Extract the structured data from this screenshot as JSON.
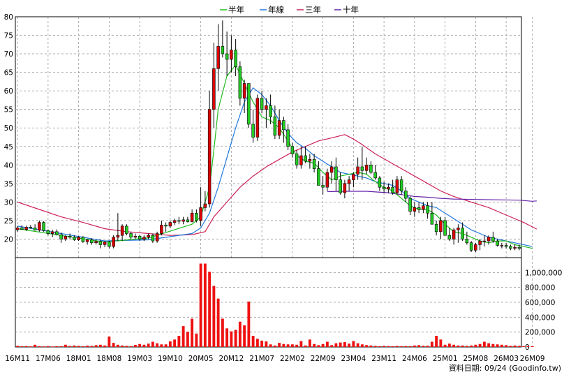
{
  "chart_data": {
    "type": "candlestick",
    "legend": [
      {
        "label": "半年",
        "color": "#22bb22"
      },
      {
        "label": "年線",
        "color": "#2277dd"
      },
      {
        "label": "三年",
        "color": "#cc2255"
      },
      {
        "label": "十年",
        "color": "#6622aa"
      }
    ],
    "price_axis": {
      "ylim": [
        15,
        80
      ],
      "ticks": [
        "80",
        "75",
        "70",
        "65",
        "60",
        "55",
        "50",
        "45",
        "40",
        "35",
        "30",
        "25",
        "20"
      ]
    },
    "volume_axis": {
      "ylim": [
        0,
        1200000
      ],
      "ticks": [
        "1,000,000",
        "800,000",
        "600,000",
        "400,000",
        "200,000",
        "0"
      ]
    },
    "x_ticks": [
      {
        "label": "16M11",
        "i": 0
      },
      {
        "label": "17M06",
        "i": 7
      },
      {
        "label": "18M01",
        "i": 14
      },
      {
        "label": "18M08",
        "i": 21
      },
      {
        "label": "19M03",
        "i": 28
      },
      {
        "label": "19M10",
        "i": 35
      },
      {
        "label": "20M05",
        "i": 42
      },
      {
        "label": "20M12",
        "i": 49
      },
      {
        "label": "21M07",
        "i": 56
      },
      {
        "label": "22M02",
        "i": 63
      },
      {
        "label": "22M09",
        "i": 70
      },
      {
        "label": "23M04",
        "i": 77
      },
      {
        "label": "23M11",
        "i": 84
      },
      {
        "label": "24M06",
        "i": 91
      },
      {
        "label": "25M01",
        "i": 98
      },
      {
        "label": "25M08",
        "i": 105
      },
      {
        "label": "26M03",
        "i": 112
      },
      {
        "label": "26M09",
        "i": 118
      }
    ],
    "ohlc": [
      [
        22.5,
        23.5,
        22,
        23
      ],
      [
        23,
        23.8,
        22.5,
        22.6
      ],
      [
        22.6,
        23.6,
        22.2,
        23.2
      ],
      [
        23.2,
        23.8,
        22.8,
        23
      ],
      [
        23,
        24,
        22.8,
        22.4
      ],
      [
        22.4,
        25,
        22,
        24.5
      ],
      [
        24.5,
        24.8,
        22,
        22.3
      ],
      [
        22.3,
        22.6,
        21,
        21.5
      ],
      [
        21.5,
        22.5,
        20.5,
        22
      ],
      [
        22,
        22.6,
        21,
        21.2
      ],
      [
        21.2,
        21.8,
        19,
        20
      ],
      [
        20,
        21,
        19.5,
        20.8
      ],
      [
        20.8,
        21.5,
        20,
        20.5
      ],
      [
        20.5,
        21,
        19.5,
        19.8
      ],
      [
        19.8,
        20.8,
        19.5,
        20.5
      ],
      [
        20.5,
        20.8,
        19,
        19.3
      ],
      [
        19.3,
        20,
        18.5,
        19.8
      ],
      [
        19.8,
        20.2,
        18.5,
        19
      ],
      [
        19,
        19.8,
        18.5,
        19.4
      ],
      [
        19.4,
        19.8,
        17.5,
        18.5
      ],
      [
        18.5,
        19.5,
        17.8,
        19.2
      ],
      [
        19.2,
        19.5,
        17.5,
        18
      ],
      [
        18,
        21,
        17.5,
        20.5
      ],
      [
        20.5,
        27,
        19.5,
        21
      ],
      [
        21,
        24,
        19.5,
        23.5
      ],
      [
        23.5,
        24,
        21,
        21.5
      ],
      [
        21.5,
        22,
        20,
        20.5
      ],
      [
        20.5,
        21.5,
        20,
        20.8
      ],
      [
        20.8,
        21.2,
        19.5,
        20
      ],
      [
        20,
        21,
        19.5,
        20.5
      ],
      [
        20.5,
        21.5,
        20,
        21
      ],
      [
        21,
        21.5,
        19,
        19.5
      ],
      [
        19.5,
        22,
        19,
        21.5
      ],
      [
        21.5,
        25,
        21,
        23.8
      ],
      [
        23.8,
        24.5,
        22,
        23.5
      ],
      [
        23.5,
        25,
        23,
        24.5
      ],
      [
        24.5,
        25.5,
        23.8,
        25
      ],
      [
        25,
        26,
        24,
        24.8
      ],
      [
        24.8,
        26,
        24,
        25.2
      ],
      [
        25.2,
        26,
        24.5,
        24.7
      ],
      [
        24.7,
        28,
        24.5,
        27
      ],
      [
        27,
        28,
        24.5,
        25
      ],
      [
        25,
        34,
        23.5,
        28.5
      ],
      [
        28.5,
        33,
        27.5,
        29.5
      ],
      [
        29.5,
        60,
        28.5,
        55
      ],
      [
        55,
        73,
        50,
        66
      ],
      [
        66,
        78,
        60,
        72
      ],
      [
        72,
        79,
        69,
        70
      ],
      [
        70,
        76,
        64,
        68.5
      ],
      [
        68.5,
        75,
        65,
        71
      ],
      [
        71,
        74,
        64,
        66.5
      ],
      [
        66.5,
        68,
        56,
        58
      ],
      [
        58,
        63,
        54,
        62
      ],
      [
        62,
        62,
        50,
        51
      ],
      [
        51,
        55,
        46,
        47.5
      ],
      [
        47.5,
        59,
        46.5,
        58
      ],
      [
        58,
        60,
        54,
        55
      ],
      [
        55,
        58,
        50,
        56
      ],
      [
        56,
        59,
        51,
        53
      ],
      [
        53,
        56,
        47,
        48
      ],
      [
        48,
        55,
        47,
        52
      ],
      [
        52,
        53,
        46,
        49.5
      ],
      [
        49.5,
        51,
        44,
        45
      ],
      [
        45,
        46,
        42,
        43
      ],
      [
        43,
        44,
        39,
        40
      ],
      [
        40,
        45,
        39,
        42.5
      ],
      [
        42.5,
        45,
        40.5,
        41
      ],
      [
        41,
        43,
        39,
        41.5
      ],
      [
        41.5,
        43,
        38,
        39
      ],
      [
        39,
        41,
        35,
        34.5
      ],
      [
        34.5,
        37,
        32,
        34
      ],
      [
        34,
        39,
        33,
        38
      ],
      [
        38,
        41,
        35,
        39.5
      ],
      [
        39.5,
        42,
        33,
        36
      ],
      [
        36,
        38,
        32,
        32.5
      ],
      [
        32.5,
        36,
        31,
        35
      ],
      [
        35,
        37,
        33,
        36
      ],
      [
        36,
        38,
        34,
        37.5
      ],
      [
        37.5,
        42,
        36,
        39.5
      ],
      [
        39.5,
        45,
        36,
        38.5
      ],
      [
        38.5,
        42,
        37.5,
        40
      ],
      [
        40,
        41,
        37.5,
        38
      ],
      [
        38,
        40,
        36,
        36.5
      ],
      [
        36.5,
        37,
        33,
        34
      ],
      [
        34,
        35.5,
        32.5,
        33.5
      ],
      [
        33.5,
        35,
        32.5,
        34
      ],
      [
        34,
        36,
        32,
        32.5
      ],
      [
        32.5,
        37,
        32,
        36
      ],
      [
        36,
        37,
        32,
        33
      ],
      [
        33,
        34,
        30,
        31
      ],
      [
        31,
        31.5,
        26.5,
        27.5
      ],
      [
        27.5,
        30,
        26,
        28.5
      ],
      [
        28.5,
        30,
        27,
        28
      ],
      [
        28,
        30,
        27,
        29
      ],
      [
        29,
        30,
        25.5,
        27
      ],
      [
        27,
        30,
        24,
        24
      ],
      [
        24,
        25,
        21,
        22
      ],
      [
        22,
        26,
        20,
        25
      ],
      [
        25,
        26,
        21,
        21
      ],
      [
        21,
        23,
        19.5,
        20
      ],
      [
        20,
        23,
        18.5,
        22.5
      ],
      [
        22.5,
        24,
        19,
        23
      ],
      [
        23,
        24.5,
        19.5,
        20
      ],
      [
        20,
        22,
        18.5,
        19
      ],
      [
        19,
        19.5,
        16.5,
        17
      ],
      [
        17,
        19,
        16.5,
        18.5
      ],
      [
        18.5,
        20,
        17,
        19.5
      ],
      [
        19.5,
        21,
        18,
        19.5
      ],
      [
        19.5,
        21,
        18.5,
        20.5
      ],
      [
        20.5,
        22,
        19,
        19.5
      ],
      [
        19.5,
        20,
        18,
        18.3
      ],
      [
        18.3,
        19,
        17.5,
        18.3
      ],
      [
        18.3,
        19,
        17.5,
        18
      ],
      [
        18,
        18.5,
        17,
        17.5
      ],
      [
        17.5,
        18.5,
        17,
        17.8
      ],
      [
        17.8,
        18.5,
        17,
        17.5
      ]
    ],
    "volume": [
      15000,
      10000,
      12000,
      8000,
      30000,
      10000,
      8000,
      12000,
      7000,
      10000,
      9000,
      30000,
      13000,
      20000,
      15000,
      10000,
      18000,
      14000,
      25000,
      30000,
      20000,
      140000,
      55000,
      30000,
      20000,
      15000,
      10000,
      28000,
      40000,
      30000,
      45000,
      70000,
      50000,
      35000,
      35000,
      75000,
      100000,
      150000,
      280000,
      205000,
      380000,
      180000,
      1120000,
      1120000,
      1010000,
      820000,
      650000,
      380000,
      250000,
      210000,
      230000,
      340000,
      290000,
      610000,
      150000,
      110000,
      85000,
      75000,
      35000,
      20000,
      55000,
      40000,
      35000,
      35000,
      30000,
      80000,
      20000,
      100000,
      40000,
      25000,
      40000,
      70000,
      25000,
      50000,
      60000,
      65000,
      45000,
      80000,
      50000,
      35000,
      25000,
      20000,
      15000,
      10000,
      15000,
      12000,
      10000,
      14000,
      10000,
      12000,
      10000,
      20000,
      25000,
      16000,
      17000,
      70000,
      150000,
      100000,
      30000,
      45000,
      30000,
      20000,
      20000,
      15000,
      20000,
      30000,
      40000,
      70000,
      50000,
      40000,
      35000,
      30000,
      25000,
      15000,
      20000,
      15000,
      10000,
      10000,
      10000
    ],
    "ma_half": [
      [
        0,
        22.8
      ],
      [
        10,
        21.0
      ],
      [
        20,
        19.2
      ],
      [
        30,
        20.3
      ],
      [
        40,
        24.0
      ],
      [
        42,
        26.0
      ],
      [
        44,
        34.0
      ],
      [
        45,
        44.0
      ],
      [
        46,
        55.0
      ],
      [
        48,
        64.0
      ],
      [
        50,
        67.0
      ],
      [
        52,
        62.0
      ],
      [
        54,
        57.0
      ],
      [
        56,
        53.0
      ],
      [
        58,
        52.0
      ],
      [
        60,
        50.0
      ],
      [
        62,
        46.5
      ],
      [
        64,
        42.5
      ],
      [
        66,
        41.0
      ],
      [
        68,
        40.5
      ],
      [
        70,
        38.0
      ],
      [
        72,
        36.0
      ],
      [
        74,
        37.0
      ],
      [
        76,
        37.5
      ],
      [
        78,
        38.0
      ],
      [
        80,
        37.5
      ],
      [
        82,
        35.5
      ],
      [
        84,
        34.0
      ],
      [
        86,
        33.0
      ],
      [
        88,
        31.0
      ],
      [
        90,
        29.0
      ],
      [
        92,
        28.0
      ],
      [
        94,
        28.0
      ],
      [
        96,
        26.5
      ],
      [
        98,
        24.0
      ],
      [
        100,
        22.0
      ],
      [
        102,
        21.5
      ],
      [
        104,
        20.5
      ],
      [
        106,
        19.5
      ],
      [
        108,
        19.0
      ],
      [
        110,
        19.5
      ],
      [
        112,
        19.5
      ],
      [
        114,
        18.5
      ],
      [
        116,
        18.0
      ],
      [
        118,
        17.5
      ]
    ],
    "ma_year": [
      [
        0,
        23.5
      ],
      [
        10,
        21.5
      ],
      [
        20,
        19.5
      ],
      [
        30,
        19.8
      ],
      [
        40,
        21.5
      ],
      [
        42,
        23.0
      ],
      [
        44,
        27.0
      ],
      [
        46,
        34.0
      ],
      [
        48,
        42.0
      ],
      [
        50,
        50.0
      ],
      [
        52,
        57.0
      ],
      [
        54,
        60.8
      ],
      [
        56,
        59.0
      ],
      [
        58,
        56.0
      ],
      [
        60,
        52.0
      ],
      [
        62,
        48.5
      ],
      [
        64,
        46.0
      ],
      [
        66,
        44.5
      ],
      [
        68,
        42.5
      ],
      [
        70,
        41.0
      ],
      [
        72,
        39.5
      ],
      [
        74,
        38.0
      ],
      [
        76,
        37.5
      ],
      [
        78,
        37.0
      ],
      [
        80,
        36.5
      ],
      [
        82,
        35.5
      ],
      [
        84,
        35.0
      ],
      [
        86,
        34.5
      ],
      [
        88,
        33.0
      ],
      [
        90,
        31.0
      ],
      [
        92,
        30.0
      ],
      [
        94,
        29.0
      ],
      [
        96,
        28.5
      ],
      [
        98,
        27.0
      ],
      [
        100,
        25.5
      ],
      [
        102,
        24.0
      ],
      [
        104,
        22.5
      ],
      [
        106,
        21.5
      ],
      [
        108,
        20.5
      ],
      [
        110,
        20.0
      ],
      [
        112,
        19.5
      ],
      [
        114,
        19.0
      ],
      [
        116,
        18.5
      ],
      [
        118,
        18.0
      ]
    ],
    "ma_3y": [
      [
        0,
        30.0
      ],
      [
        5,
        28.0
      ],
      [
        10,
        26.0
      ],
      [
        15,
        24.5
      ],
      [
        20,
        22.8
      ],
      [
        25,
        22.0
      ],
      [
        30,
        21.5
      ],
      [
        35,
        21.0
      ],
      [
        40,
        21.2
      ],
      [
        43,
        22.0
      ],
      [
        45,
        26.0
      ],
      [
        48,
        30.0
      ],
      [
        51,
        34.0
      ],
      [
        54,
        37.0
      ],
      [
        57,
        39.5
      ],
      [
        60,
        41.5
      ],
      [
        63,
        43.5
      ],
      [
        66,
        45.0
      ],
      [
        69,
        46.5
      ],
      [
        72,
        47.3
      ],
      [
        75,
        48.2
      ],
      [
        77,
        47.0
      ],
      [
        79,
        45.5
      ],
      [
        82,
        43.0
      ],
      [
        85,
        41.0
      ],
      [
        88,
        39.0
      ],
      [
        91,
        37.0
      ],
      [
        94,
        35.0
      ],
      [
        97,
        33.0
      ],
      [
        100,
        31.5
      ],
      [
        104,
        30.0
      ],
      [
        108,
        28.5
      ],
      [
        112,
        26.5
      ],
      [
        116,
        24.5
      ],
      [
        119,
        22.7
      ]
    ],
    "ma_10y": [
      [
        71,
        32.8
      ],
      [
        75,
        32.9
      ],
      [
        80,
        32.9
      ],
      [
        85,
        32.5
      ],
      [
        88,
        32.0
      ],
      [
        91,
        31.5
      ],
      [
        94,
        31.3
      ],
      [
        97,
        31.0
      ],
      [
        100,
        30.8
      ],
      [
        105,
        30.7
      ],
      [
        110,
        30.6
      ],
      [
        115,
        30.5
      ],
      [
        118,
        30.2
      ],
      [
        119,
        30.3
      ]
    ]
  },
  "footer": "資料日期: 09/24 (Goodinfo.tw)"
}
